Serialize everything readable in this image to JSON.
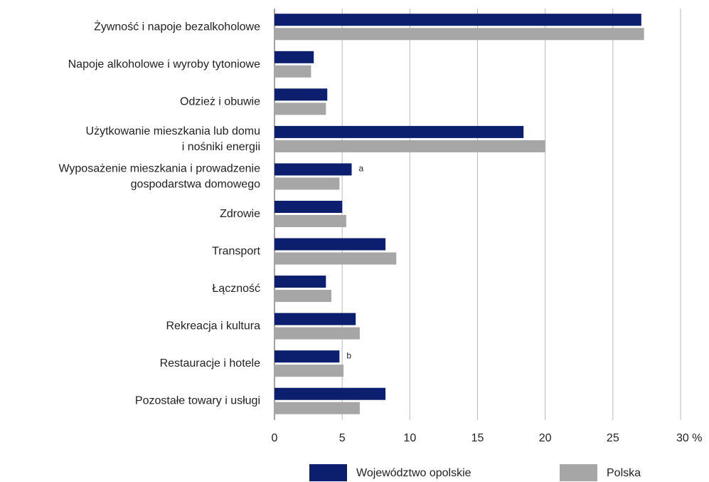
{
  "chart_data": {
    "type": "bar",
    "orientation": "horizontal",
    "categories": [
      "Żywność i napoje bezalkoholowe",
      "Napoje alkoholowe i wyroby tytoniowe",
      "Odzież i obuwie",
      "Użytkowanie mieszkania lub domu\ni nośniki energii",
      "Wyposażenie mieszkania i prowadzenie\ngospodarstwa domowego",
      "Zdrowie",
      "Transport",
      "Łączność",
      "Rekreacja i kultura",
      "Restauracje i hotele",
      "Pozostałe towary i usługi"
    ],
    "series": [
      {
        "name": "Województwo opolskie",
        "color": "#0c1f6e",
        "values": [
          27.1,
          2.9,
          3.9,
          18.4,
          5.7,
          5.0,
          8.2,
          3.8,
          6.0,
          4.8,
          8.2
        ]
      },
      {
        "name": "Polska",
        "color": "#a6a6a6",
        "values": [
          27.3,
          2.7,
          3.8,
          20.0,
          4.8,
          5.3,
          9.0,
          4.2,
          6.3,
          5.1,
          6.3
        ]
      }
    ],
    "annotations": [
      "a",
      "b"
    ],
    "xlim": [
      0,
      30
    ],
    "xticks": [
      0,
      5,
      10,
      15,
      20,
      25,
      {
        "value": 30,
        "label": "30 %"
      }
    ],
    "grid": true,
    "legend": "bottom"
  }
}
